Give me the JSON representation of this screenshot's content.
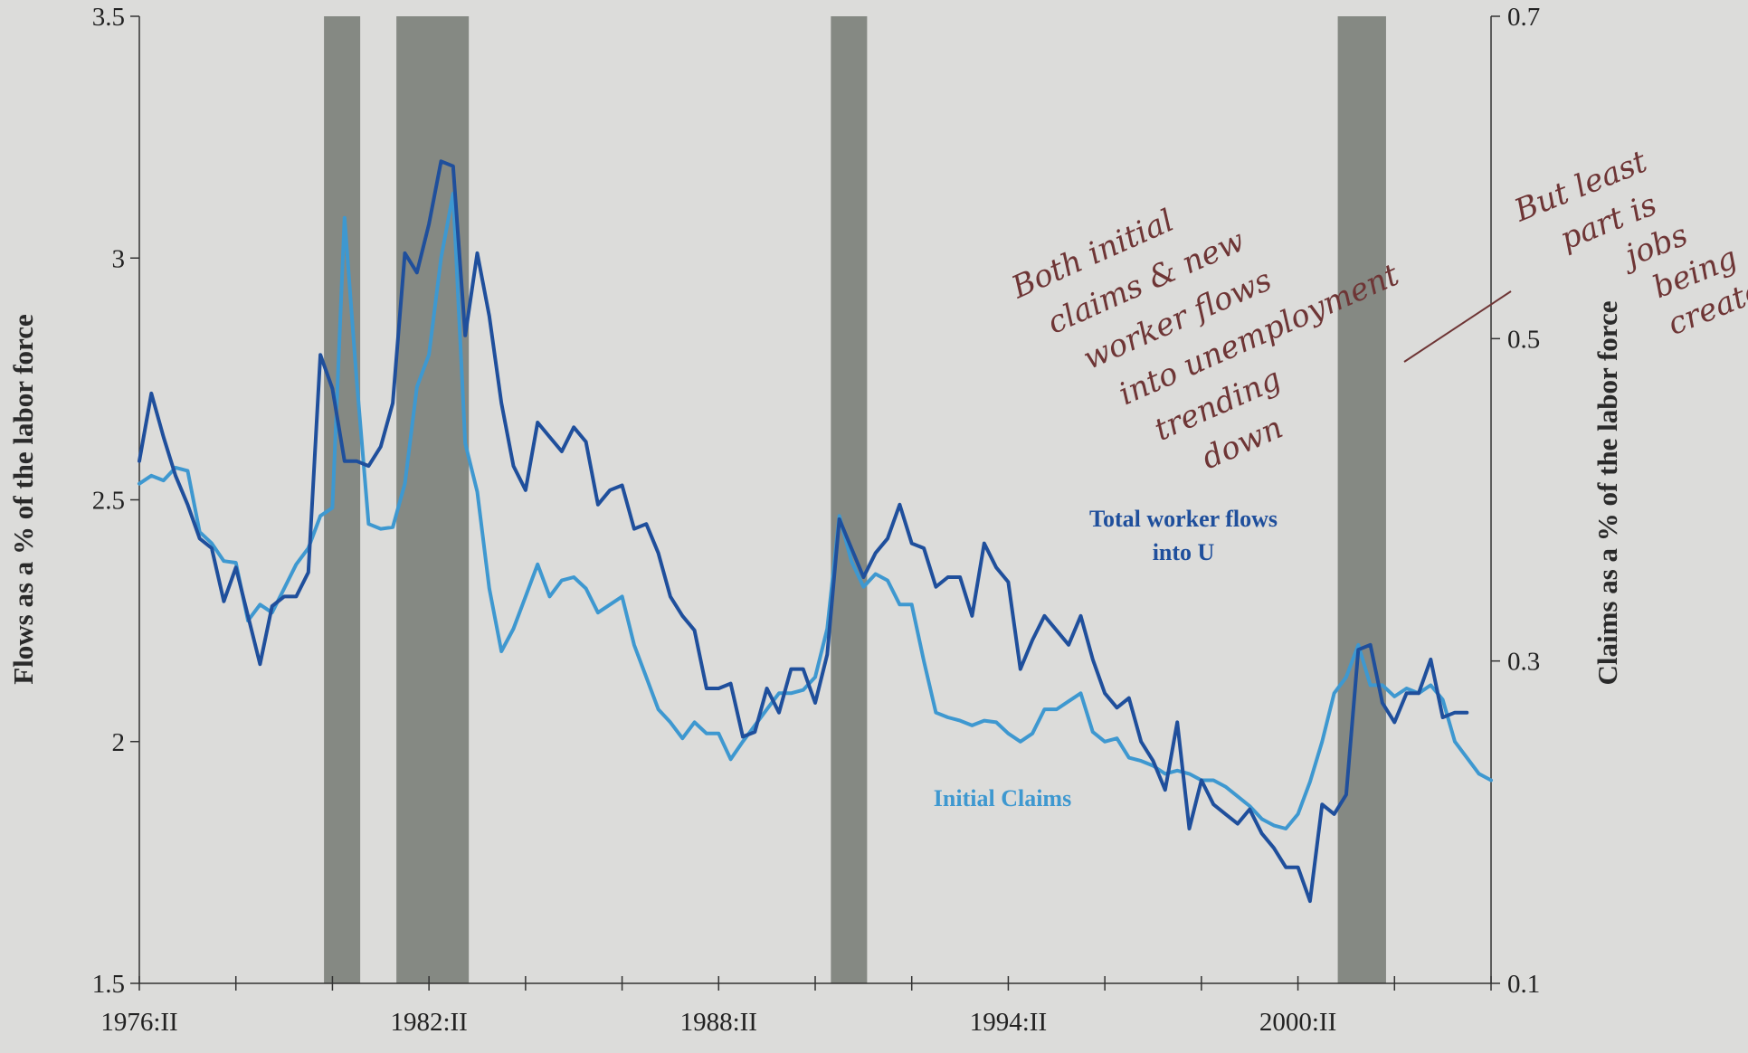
{
  "chart_data": {
    "type": "line",
    "x_tick_labels": [
      "1976:II",
      "1982:II",
      "1988:II",
      "1994:II",
      "2000:II"
    ],
    "x_tick_labels_positions_quarter_index": [
      0,
      24,
      48,
      72,
      96
    ],
    "x_range": [
      0,
      112
    ],
    "left_axis": {
      "label": "Flows as a % of the labor force",
      "range": [
        1.5,
        3.5
      ],
      "ticks": [
        "1.5",
        "2",
        "2.5",
        "3",
        "3.5"
      ]
    },
    "right_axis": {
      "label": "Claims as a % of the labor force",
      "range": [
        0.1,
        0.7
      ],
      "ticks": [
        "0.1",
        "0.3",
        "0.5",
        "0.7"
      ]
    },
    "recessions": [
      [
        15.3,
        18.3
      ],
      [
        21.3,
        27.3
      ],
      [
        57.3,
        60.3
      ],
      [
        99.3,
        103.3
      ]
    ],
    "series": [
      {
        "name": "Total worker flows into U",
        "axis": "left",
        "color": "#1f4f9c",
        "values": [
          2.58,
          2.72,
          2.63,
          2.55,
          2.49,
          2.42,
          2.4,
          2.29,
          2.36,
          2.26,
          2.16,
          2.28,
          2.3,
          2.3,
          2.35,
          2.8,
          2.73,
          2.58,
          2.58,
          2.57,
          2.61,
          2.7,
          3.01,
          2.97,
          3.07,
          3.2,
          3.19,
          2.84,
          3.01,
          2.88,
          2.7,
          2.57,
          2.52,
          2.66,
          2.63,
          2.6,
          2.65,
          2.62,
          2.49,
          2.52,
          2.53,
          2.44,
          2.45,
          2.39,
          2.3,
          2.26,
          2.23,
          2.11,
          2.11,
          2.12,
          2.01,
          2.02,
          2.11,
          2.06,
          2.15,
          2.15,
          2.08,
          2.18,
          2.46,
          2.4,
          2.34,
          2.39,
          2.42,
          2.49,
          2.41,
          2.4,
          2.32,
          2.34,
          2.34,
          2.26,
          2.41,
          2.36,
          2.33,
          2.15,
          2.21,
          2.26,
          2.23,
          2.2,
          2.26,
          2.17,
          2.1,
          2.07,
          2.09,
          2.0,
          1.96,
          1.9,
          2.04,
          1.82,
          1.92,
          1.87,
          1.85,
          1.83,
          1.86,
          1.81,
          1.78,
          1.74,
          1.74,
          1.67,
          1.87,
          1.85,
          1.89,
          2.19,
          2.2,
          2.08,
          2.04,
          2.1,
          2.1,
          2.17,
          2.05,
          2.06,
          2.06,
          null,
          null
        ]
      },
      {
        "name": "Initial Claims",
        "axis": "right",
        "color": "#3e98d0",
        "values": [
          0.41,
          0.415,
          0.412,
          0.42,
          0.418,
          0.38,
          0.373,
          0.362,
          0.361,
          0.325,
          0.335,
          0.33,
          0.345,
          0.36,
          0.37,
          0.39,
          0.395,
          0.575,
          0.475,
          0.385,
          0.382,
          0.383,
          0.41,
          0.47,
          0.49,
          0.55,
          0.59,
          0.435,
          0.405,
          0.345,
          0.306,
          0.32,
          0.34,
          0.36,
          0.34,
          0.35,
          0.352,
          0.345,
          0.33,
          0.335,
          0.34,
          0.31,
          0.29,
          0.27,
          0.262,
          0.252,
          0.262,
          0.255,
          0.255,
          0.239,
          0.25,
          0.26,
          0.27,
          0.28,
          0.28,
          0.282,
          0.29,
          0.32,
          0.39,
          0.362,
          0.346,
          0.354,
          0.35,
          0.335,
          0.335,
          0.3,
          0.268,
          0.265,
          0.263,
          0.26,
          0.263,
          0.262,
          0.255,
          0.25,
          0.255,
          0.27,
          0.27,
          0.275,
          0.28,
          0.256,
          0.25,
          0.252,
          0.24,
          0.238,
          0.235,
          0.23,
          0.232,
          0.23,
          0.226,
          0.226,
          0.222,
          0.216,
          0.21,
          0.202,
          0.198,
          0.196,
          0.205,
          0.225,
          0.25,
          0.28,
          0.29,
          0.31,
          0.285,
          0.285,
          0.278,
          0.283,
          0.28,
          0.285,
          0.276,
          0.25,
          0.24,
          0.23,
          0.226
        ]
      }
    ],
    "annotations": {
      "flows_label_line1": "Total worker flows",
      "flows_label_line2": "into U",
      "claims_label": "Initial Claims"
    },
    "handwritten_notes": {
      "note_a": [
        "Both initial",
        "claims & new",
        "worker flows",
        "into unemployment",
        "trending",
        "down"
      ],
      "note_b": [
        "But least",
        "part is",
        "jobs",
        "being",
        "created"
      ]
    },
    "grid": false
  }
}
